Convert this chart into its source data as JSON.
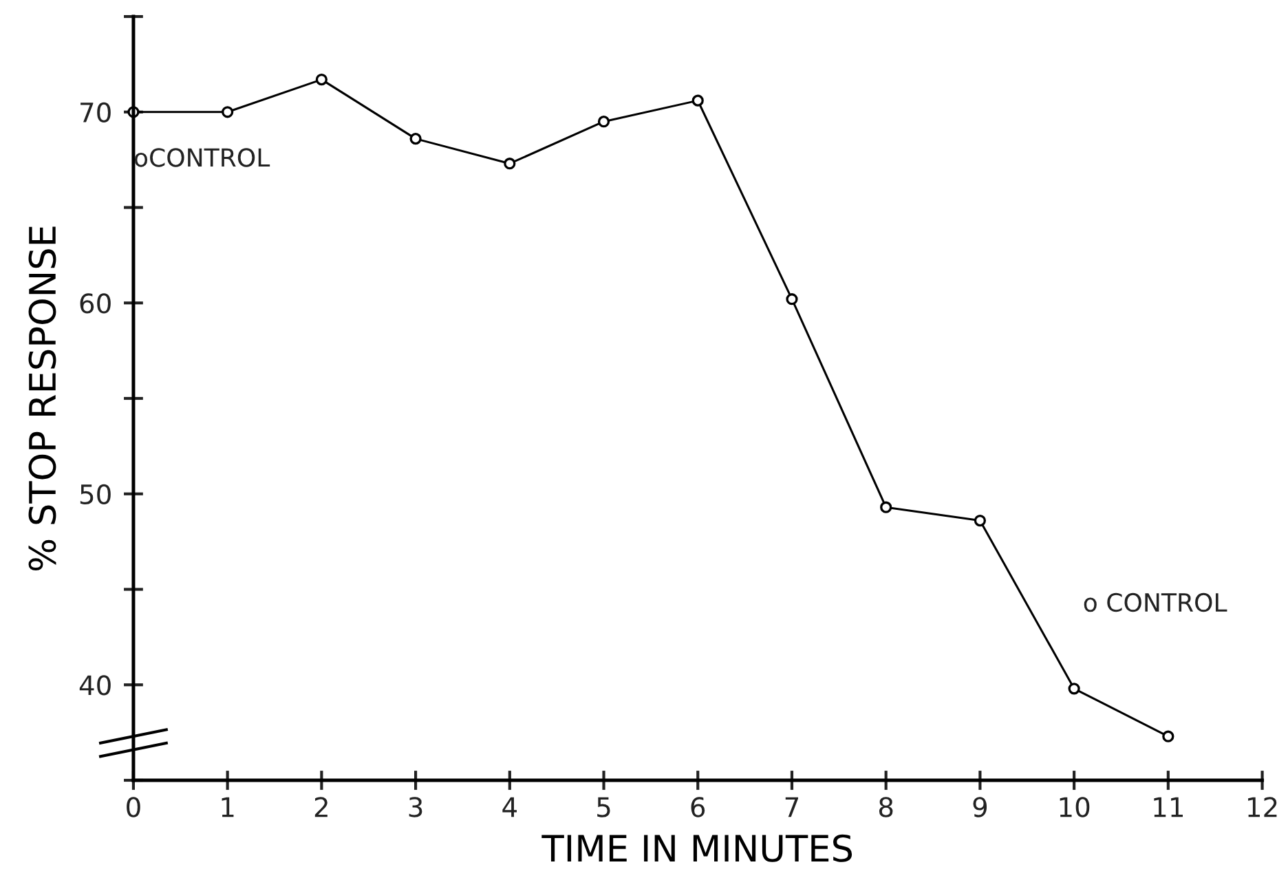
{
  "chart_data": {
    "type": "line",
    "xlabel": "TIME IN MINUTES",
    "ylabel": "% STOP RESPONSE",
    "x": [
      0,
      1,
      2,
      3,
      4,
      5,
      6,
      7,
      8,
      9,
      10,
      11
    ],
    "series": [
      {
        "color": "#000000",
        "values": [
          70.0,
          70.0,
          71.7,
          68.6,
          67.3,
          69.5,
          70.6,
          60.2,
          49.3,
          48.6,
          39.8,
          37.3
        ]
      }
    ],
    "marker": "circle",
    "line_style": "solid",
    "grid": false,
    "legend": false,
    "xlim": [
      0,
      12
    ],
    "xticks": [
      0,
      1,
      2,
      3,
      4,
      5,
      6,
      7,
      8,
      9,
      10,
      11,
      12
    ],
    "ylim": [
      35,
      75
    ],
    "yticks": [
      {
        "value": 35,
        "label": null
      },
      40,
      {
        "value": 45,
        "label": null
      },
      50,
      {
        "value": 55,
        "label": null
      },
      60,
      {
        "value": 65,
        "label": null
      },
      70,
      {
        "value": 75,
        "label": null
      }
    ],
    "annotations": [
      "oCONTROL",
      "o CONTROL"
    ]
  }
}
